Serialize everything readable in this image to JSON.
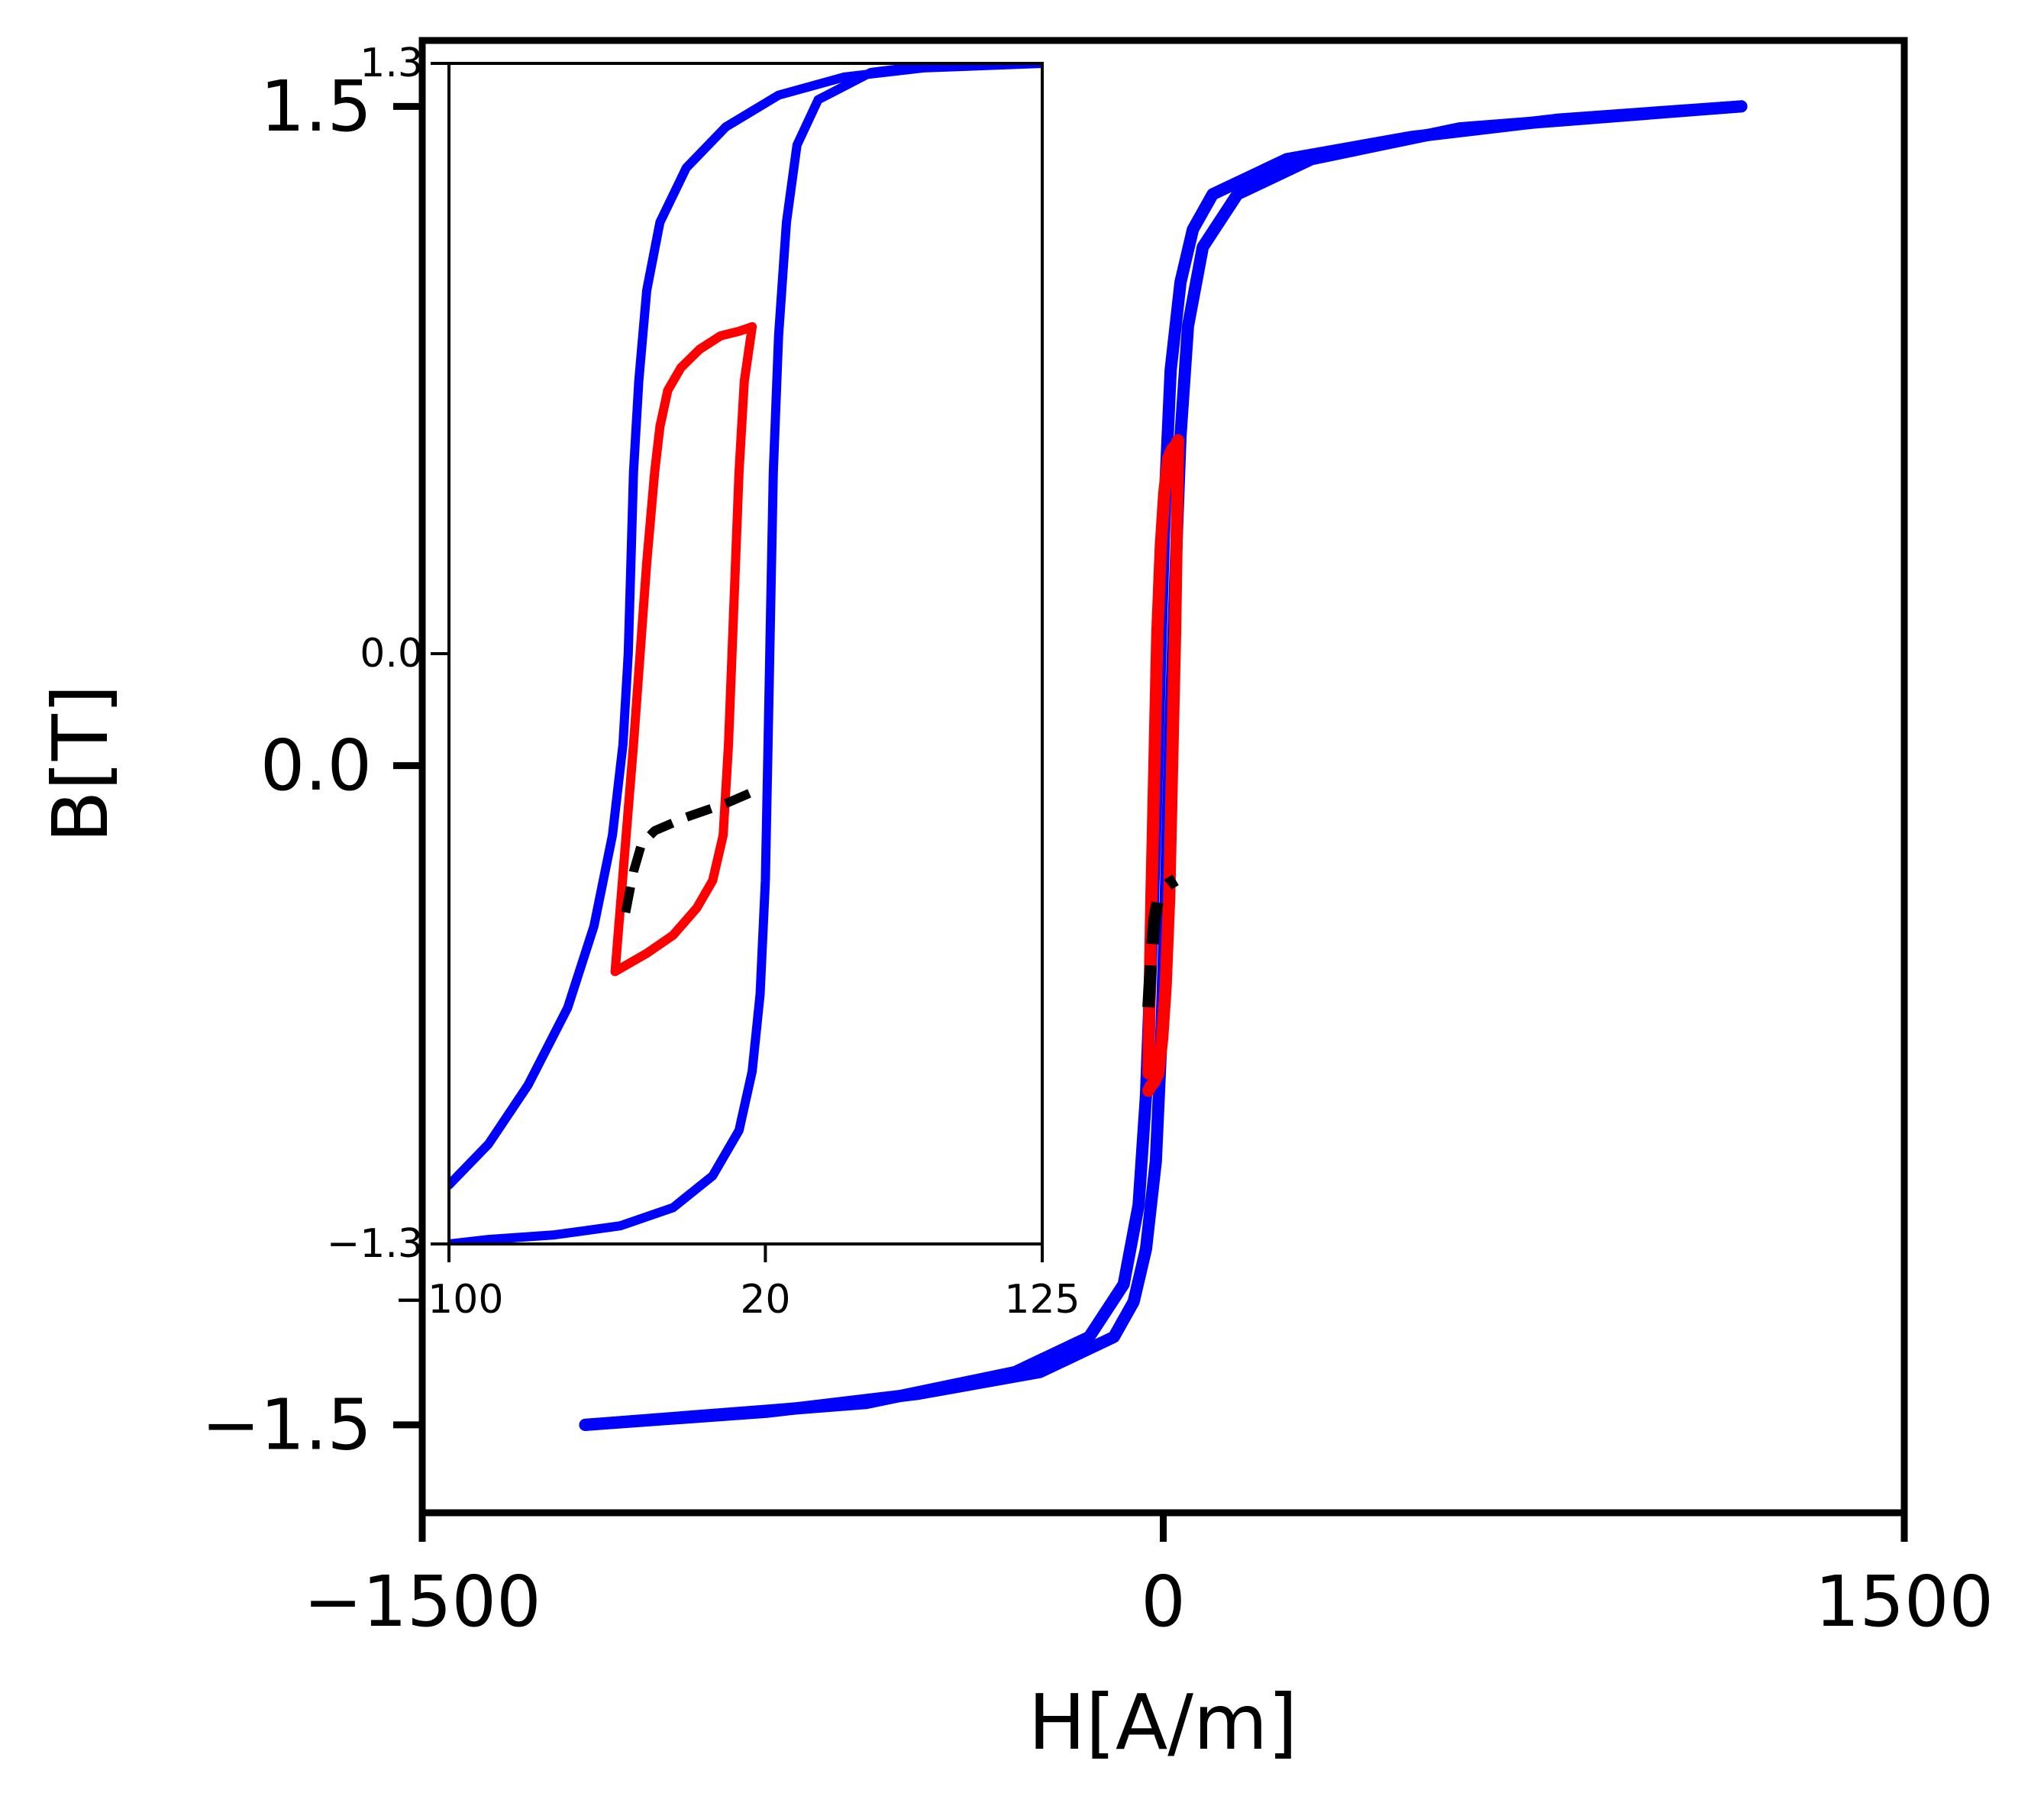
{
  "chart_data": [
    {
      "type": "line",
      "title": "",
      "xlabel": "H[A/m]",
      "ylabel": "B[T]",
      "xlim": [
        -1500,
        1500
      ],
      "ylim": [
        -1.7,
        1.65
      ],
      "xticks": [
        -1500,
        0,
        1500
      ],
      "xtick_labels": [
        "−1500",
        "0",
        "1500"
      ],
      "yticks": [
        -1.5,
        0.0,
        1.5
      ],
      "ytick_labels": [
        "−1.5",
        "0.0",
        "1.5"
      ],
      "grid": false,
      "legend": "none",
      "series": [
        {
          "color": "#0000ff",
          "style": "solid",
          "x": [
            1170,
            600,
            300,
            150,
            80,
            50,
            35,
            25,
            15,
            5,
            -5,
            -15,
            -35,
            -60,
            -100,
            -250,
            -500,
            -800,
            -1170
          ],
          "y": [
            1.5,
            1.45,
            1.38,
            1.3,
            1.18,
            1.0,
            0.75,
            0.45,
            0.1,
            -0.3,
            -0.65,
            -0.9,
            -1.1,
            -1.22,
            -1.3,
            -1.38,
            -1.43,
            -1.47,
            -1.5
          ]
        },
        {
          "color": "#0000ff",
          "style": "solid",
          "x": [
            -1170,
            -600,
            -300,
            -150,
            -80,
            -50,
            -35,
            -25,
            -15,
            -5,
            5,
            15,
            35,
            60,
            100,
            250,
            500,
            800,
            1170
          ],
          "y": [
            -1.5,
            -1.45,
            -1.38,
            -1.3,
            -1.18,
            -1.0,
            -0.75,
            -0.45,
            -0.1,
            0.3,
            0.65,
            0.9,
            1.1,
            1.22,
            1.3,
            1.38,
            1.43,
            1.47,
            1.5
          ]
        },
        {
          "color": "#ff0000",
          "style": "solid",
          "x": [
            -30,
            -28,
            -24,
            -18,
            -12,
            -5,
            2,
            10,
            18,
            26,
            30
          ],
          "y": [
            -0.7,
            -0.55,
            -0.3,
            0.0,
            0.3,
            0.5,
            0.62,
            0.7,
            0.72,
            0.73,
            0.74
          ]
        },
        {
          "color": "#ff0000",
          "style": "solid",
          "x": [
            30,
            28,
            24,
            18,
            12,
            5,
            -2,
            -10,
            -18,
            -26,
            -30
          ],
          "y": [
            0.74,
            0.58,
            0.3,
            0.0,
            -0.3,
            -0.5,
            -0.62,
            -0.7,
            -0.72,
            -0.73,
            -0.74
          ]
        },
        {
          "color": "#000000",
          "style": "dashed",
          "x": [
            -30,
            -25,
            -18,
            -10,
            0,
            10,
            25
          ],
          "y": [
            -0.55,
            -0.45,
            -0.35,
            -0.3,
            -0.28,
            -0.27,
            -0.26
          ]
        }
      ]
    },
    {
      "type": "line",
      "title": "",
      "xlabel": "",
      "ylabel": "",
      "xlim": [
        -100,
        125
      ],
      "ylim": [
        -1.3,
        1.3
      ],
      "xticks": [
        -100,
        20,
        125
      ],
      "xtick_labels": [
        "−100",
        "20",
        "125"
      ],
      "yticks": [
        -1.3,
        0.0,
        1.3
      ],
      "ytick_labels": [
        "−1.3",
        "0.0",
        "1.3"
      ],
      "grid": false,
      "legend": "none",
      "series": [
        {
          "color": "#0000ff",
          "style": "solid",
          "x": [
            88,
            60,
            40,
            32,
            28,
            25,
            23,
            22,
            21,
            20,
            18,
            15,
            10,
            0,
            -15,
            -35,
            -60,
            -85,
            -100
          ],
          "y": [
            1.3,
            1.28,
            1.22,
            1.12,
            0.95,
            0.7,
            0.4,
            0.1,
            -0.2,
            -0.5,
            -0.75,
            -0.92,
            -1.05,
            -1.15,
            -1.22,
            -1.26,
            -1.28,
            -1.29,
            -1.3
          ]
        },
        {
          "color": "#0000ff",
          "style": "solid",
          "x": [
            -100,
            -85,
            -70,
            -55,
            -45,
            -38,
            -34,
            -32,
            -31,
            -30,
            -28,
            -25,
            -20,
            -10,
            5,
            25,
            50,
            80,
            125
          ],
          "y": [
            -1.17,
            -1.08,
            -0.95,
            -0.78,
            -0.6,
            -0.4,
            -0.2,
            0.0,
            0.2,
            0.4,
            0.6,
            0.8,
            0.95,
            1.07,
            1.16,
            1.23,
            1.27,
            1.29,
            1.3
          ]
        },
        {
          "color": "#ff0000",
          "style": "solid",
          "x": [
            -37,
            -30,
            -25,
            -22,
            -20,
            -17,
            -12,
            -5,
            3,
            10,
            15
          ],
          "y": [
            -0.7,
            -0.2,
            0.2,
            0.4,
            0.5,
            0.58,
            0.63,
            0.67,
            0.7,
            0.71,
            0.72
          ]
        },
        {
          "color": "#ff0000",
          "style": "solid",
          "x": [
            15,
            12,
            10,
            8,
            6,
            4,
            0,
            -6,
            -15,
            -25,
            -37
          ],
          "y": [
            0.72,
            0.6,
            0.4,
            0.1,
            -0.2,
            -0.4,
            -0.5,
            -0.56,
            -0.62,
            -0.66,
            -0.7
          ]
        },
        {
          "color": "#000000",
          "style": "dashed",
          "x": [
            -33,
            -30,
            -27,
            -22,
            -10,
            5,
            17
          ],
          "y": [
            -0.57,
            -0.48,
            -0.42,
            -0.39,
            -0.36,
            -0.33,
            -0.3
          ]
        }
      ]
    }
  ]
}
